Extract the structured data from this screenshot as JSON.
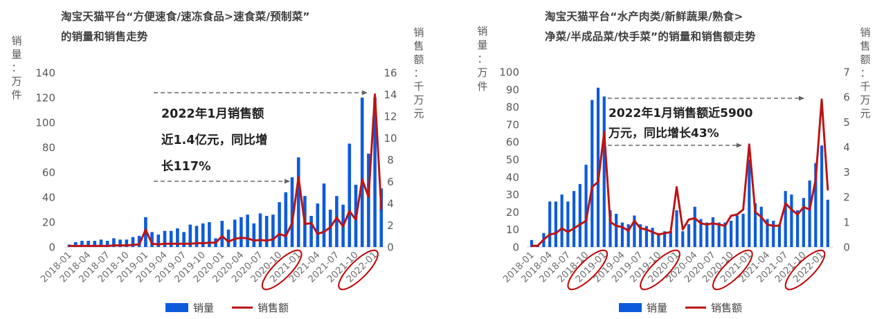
{
  "colors": {
    "bar": "#0d5bdb",
    "line": "#be1313",
    "circle": "#c00000",
    "arrow": "#7f7f7f",
    "title": "#3f3f3f",
    "tick": "#595959",
    "xtick": "#6e6e6e",
    "annotation": "#1f1f1f",
    "baseline": "#d9d9d9"
  },
  "charts": [
    {
      "title_line1": "淘宝天猫平台“方便速食/速冻食品>速食菜/预制菜”",
      "title_line2": "的销量和销售走势",
      "left_axis_title": "销量：万件",
      "right_axis_title": "销售额：千万元",
      "annotation_lines": [
        "2022年1月销售额",
        "近1.4亿元，同比增",
        "长117%"
      ],
      "legend": {
        "volume_label": "销量",
        "revenue_label": "销售额"
      },
      "chart_data": {
        "type": "bar+line",
        "title": "淘宝天猫平台“方便速食/速冻食品>速食菜/预制菜”的销量和销售走势",
        "xlabel": "",
        "ylabel_left": "销量：万件",
        "ylabel_right": "销售额：千万元",
        "grid": false,
        "legend_position": "bottom",
        "x": [
          "2018-01",
          "2018-02",
          "2018-03",
          "2018-04",
          "2018-05",
          "2018-06",
          "2018-07",
          "2018-08",
          "2018-09",
          "2018-10",
          "2018-11",
          "2018-12",
          "2019-01",
          "2019-02",
          "2019-03",
          "2019-04",
          "2019-05",
          "2019-06",
          "2019-07",
          "2019-08",
          "2019-09",
          "2019-10",
          "2019-11",
          "2019-12",
          "2020-01",
          "2020-02",
          "2020-03",
          "2020-04",
          "2020-05",
          "2020-06",
          "2020-07",
          "2020-08",
          "2020-09",
          "2020-10",
          "2020-11",
          "2020-12",
          "2021-01",
          "2021-02",
          "2021-03",
          "2021-04",
          "2021-05",
          "2021-06",
          "2021-07",
          "2021-08",
          "2021-09",
          "2021-10",
          "2021-11",
          "2021-12",
          "2022-01",
          "2022-02"
        ],
        "series": [
          {
            "name": "销量",
            "type": "bar",
            "axis": "left",
            "unit": "万件",
            "values": [
              2,
              4,
              5,
              5,
              5,
              6,
              5,
              7,
              6,
              6,
              8,
              9,
              24,
              12,
              10,
              13,
              13,
              15,
              12,
              18,
              17,
              19,
              20,
              7,
              21,
              14,
              22,
              24,
              26,
              19,
              27,
              25,
              26,
              36,
              44,
              56,
              72,
              41,
              25,
              35,
              51,
              30,
              41,
              34,
              83,
              50,
              120,
              75,
              120,
              47
            ]
          },
          {
            "name": "销售额",
            "type": "line",
            "axis": "right",
            "unit": "千万元",
            "values": [
              0.1,
              0.1,
              0.1,
              0.1,
              0.1,
              0.1,
              0.1,
              0.15,
              0.15,
              0.15,
              0.2,
              0.25,
              1.6,
              0.3,
              0.25,
              0.3,
              0.3,
              0.3,
              0.3,
              0.3,
              0.35,
              0.35,
              0.4,
              0.4,
              1.0,
              0.5,
              0.75,
              0.85,
              0.8,
              0.6,
              0.65,
              0.6,
              0.7,
              1.2,
              1.0,
              2.2,
              6.4,
              2.1,
              2.2,
              1.2,
              1.4,
              1.8,
              2.7,
              1.9,
              3.3,
              2.5,
              6.2,
              4.6,
              14.0,
              3.5
            ]
          }
        ],
        "ylim_left": [
          0,
          140
        ],
        "yticks_left": [
          0,
          20,
          40,
          60,
          80,
          100,
          120,
          140
        ],
        "ylim_right": [
          0,
          16
        ],
        "yticks_right": [
          0,
          2,
          4,
          6,
          8,
          10,
          12,
          14,
          16
        ],
        "xtick_labels": [
          "2018-01",
          "2018-04",
          "2018-07",
          "2018-10",
          "2019-01",
          "2019-04",
          "2019-07",
          "2019-10",
          "2020-01",
          "2020-04",
          "2020-07",
          "2020-10",
          "2021-01",
          "2021-04",
          "2021-07",
          "2021-10",
          "2022-01"
        ],
        "circled_xticks": [
          "2021-01",
          "2022-01"
        ]
      }
    },
    {
      "title_line1": "淘宝天猫平台“水产肉类/新鲜蔬果/熟食>",
      "title_line2": "净菜/半成品菜/快手菜”的销量和销售额走势",
      "left_axis_title": "销量：万件",
      "right_axis_title": "销售额：千万元",
      "annotation_lines": [
        "2022年1月销售额近5900",
        "万元，同比增长43%"
      ],
      "legend": {
        "volume_label": "销量",
        "revenue_label": "销售额"
      },
      "chart_data": {
        "type": "bar+line",
        "title": "淘宝天猫平台“水产肉类/新鲜蔬果/熟食>净菜/半成品菜/快手菜”的销量和销售额走势",
        "xlabel": "",
        "ylabel_left": "销量：万件",
        "ylabel_right": "销售额：千万元",
        "grid": false,
        "legend_position": "bottom",
        "x": [
          "2018-01",
          "2018-02",
          "2018-03",
          "2018-04",
          "2018-05",
          "2018-06",
          "2018-07",
          "2018-08",
          "2018-09",
          "2018-10",
          "2018-11",
          "2018-12",
          "2019-01",
          "2019-02",
          "2019-03",
          "2019-04",
          "2019-05",
          "2019-06",
          "2019-07",
          "2019-08",
          "2019-09",
          "2019-10",
          "2019-11",
          "2019-12",
          "2020-01",
          "2020-02",
          "2020-03",
          "2020-04",
          "2020-05",
          "2020-06",
          "2020-07",
          "2020-08",
          "2020-09",
          "2020-10",
          "2020-11",
          "2020-12",
          "2021-01",
          "2021-02",
          "2021-03",
          "2021-04",
          "2021-05",
          "2021-06",
          "2021-07",
          "2021-08",
          "2021-09",
          "2021-10",
          "2021-11",
          "2021-12",
          "2022-01",
          "2022-02"
        ],
        "series": [
          {
            "name": "销量",
            "type": "bar",
            "axis": "left",
            "unit": "万件",
            "values": [
              4,
              1,
              8,
              26,
              26,
              30,
              26,
              32,
              36,
              47,
              84,
              91,
              86,
              21,
              19,
              14,
              13,
              18,
              13,
              12,
              11,
              8,
              9,
              9,
              21,
              9,
              13,
              23,
              16,
              14,
              17,
              14,
              14,
              15,
              18,
              19,
              50,
              25,
              23,
              16,
              15,
              13,
              32,
              30,
              21,
              28,
              38,
              48,
              58,
              27
            ]
          },
          {
            "name": "销售额",
            "type": "line",
            "axis": "right",
            "unit": "千万元",
            "values": [
              0.05,
              0.05,
              0.3,
              0.5,
              0.55,
              0.75,
              0.6,
              0.75,
              0.9,
              1.05,
              2.4,
              2.6,
              4.6,
              1.0,
              0.85,
              0.8,
              0.65,
              1.05,
              0.75,
              0.7,
              0.6,
              0.5,
              0.55,
              0.6,
              2.4,
              0.7,
              1.1,
              1.15,
              0.95,
              0.9,
              0.95,
              0.9,
              0.85,
              1.25,
              1.3,
              1.5,
              4.1,
              1.4,
              1.2,
              0.9,
              0.85,
              0.85,
              1.75,
              1.5,
              1.3,
              1.6,
              1.5,
              2.7,
              5.9,
              2.3
            ]
          }
        ],
        "ylim_left": [
          0,
          100
        ],
        "yticks_left": [
          0,
          10,
          20,
          30,
          40,
          50,
          60,
          70,
          80,
          90,
          100
        ],
        "ylim_right": [
          0,
          7
        ],
        "yticks_right": [
          0,
          1,
          2,
          3,
          4,
          5,
          6,
          7
        ],
        "xtick_labels": [
          "2018-01",
          "2018-04",
          "2018-07",
          "2018-10",
          "2019-01",
          "2019-04",
          "2019-07",
          "2019-10",
          "2020-01",
          "2020-04",
          "2020-07",
          "2020-10",
          "2021-01",
          "2021-04",
          "2021-07",
          "2021-10",
          "2022-01"
        ],
        "circled_xticks": [
          "2019-01",
          "2020-01",
          "2021-01",
          "2022-01"
        ]
      }
    }
  ]
}
